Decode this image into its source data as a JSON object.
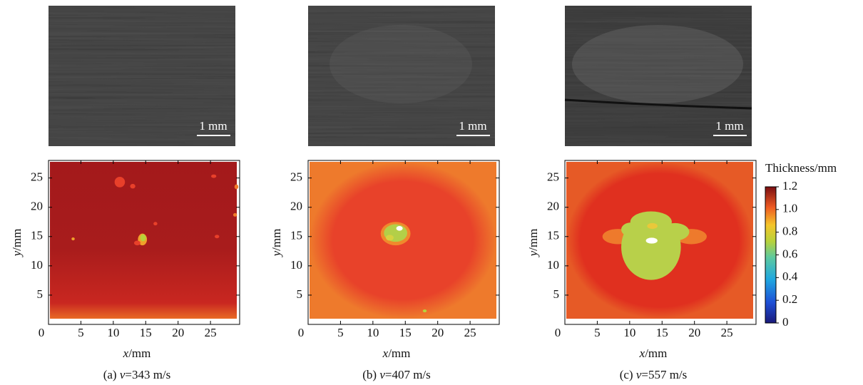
{
  "chart_data": [
    {
      "type": "heatmap",
      "caption_tag": "(a)",
      "caption_var": "v",
      "caption_rest": "=343 m/s",
      "scale_bar": "1 mm",
      "xlabel_var": "x",
      "xlabel_unit": "/mm",
      "ylabel_var": "y",
      "ylabel_unit": "/mm",
      "xlim": [
        0,
        29.5
      ],
      "xticks": [
        0,
        5,
        10,
        15,
        20,
        25
      ],
      "ylim": [
        0,
        28
      ],
      "yticks": [
        5,
        10,
        15,
        20,
        25
      ]
    },
    {
      "type": "heatmap",
      "caption_tag": "(b)",
      "caption_var": "v",
      "caption_rest": "=407 m/s",
      "scale_bar": "1 mm",
      "xlabel_var": "x",
      "xlabel_unit": "/mm",
      "ylabel_var": "y",
      "ylabel_unit": "/mm",
      "xlim": [
        0,
        29.5
      ],
      "xticks": [
        0,
        5,
        10,
        15,
        20,
        25
      ],
      "ylim": [
        0,
        28
      ],
      "yticks": [
        5,
        10,
        15,
        20,
        25
      ]
    },
    {
      "type": "heatmap",
      "caption_tag": "(c)",
      "caption_var": "v",
      "caption_rest": "=557 m/s",
      "scale_bar": "1 mm",
      "xlabel_var": "x",
      "xlabel_unit": "/mm",
      "ylabel_var": "y",
      "ylabel_unit": "/mm",
      "xlim": [
        0,
        29.5
      ],
      "xticks": [
        0,
        5,
        10,
        15,
        20,
        25
      ],
      "ylim": [
        0,
        28
      ],
      "yticks": [
        5,
        10,
        15,
        20,
        25
      ]
    }
  ],
  "colorbar": {
    "title": "Thickness/mm",
    "lim": [
      0,
      1.2
    ],
    "ticks": [
      0,
      0.2,
      0.4,
      0.6,
      0.8,
      {
        "value": 1,
        "label": "1.0"
      },
      1.2
    ]
  }
}
